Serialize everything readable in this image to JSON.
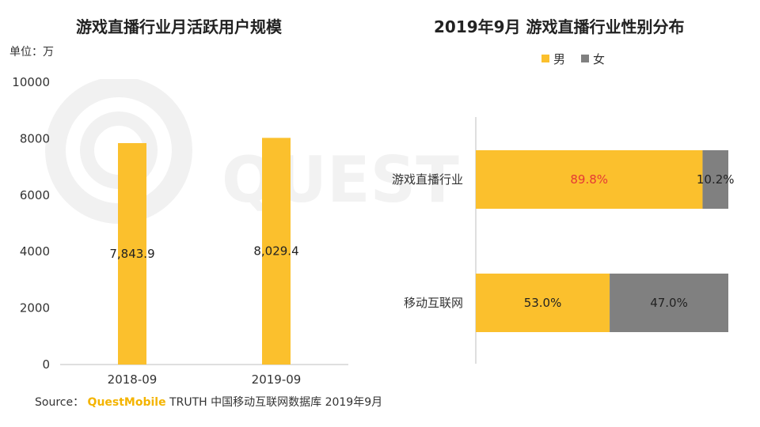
{
  "left_chart": {
    "title": "游戏直播行业月活跃用户规模",
    "unit_label": "单位：万"
  },
  "right_chart": {
    "title": "2019年9月 游戏直播行业性别分布"
  },
  "watermark_text": "QUEST",
  "source": {
    "prefix": "Source：",
    "brand": "QuestMobile",
    "rest": "TRUTH 中国移动互联网数据库 2019年9月"
  },
  "colors": {
    "yellow": "#FBC02D",
    "gray": "#808080",
    "highlight_label": "#E53935",
    "axis": "#BFBFBF"
  },
  "chart_data": [
    {
      "type": "bar",
      "title": "游戏直播行业月活跃用户规模",
      "ylabel": "单位：万",
      "categories": [
        "2018-09",
        "2019-09"
      ],
      "values": [
        7843.9,
        8029.4
      ],
      "value_labels": [
        "7,843.9",
        "8,029.4"
      ],
      "ylim": [
        0,
        10000
      ],
      "yticks": [
        0,
        2000,
        4000,
        6000,
        8000,
        10000
      ],
      "grid": false
    },
    {
      "type": "bar",
      "orientation": "horizontal",
      "stacked": "percent",
      "title": "2019年9月 游戏直播行业性别分布",
      "categories": [
        "游戏直播行业",
        "移动互联网"
      ],
      "series": [
        {
          "name": "男",
          "values": [
            89.8,
            53.0
          ],
          "labels": [
            "89.8%",
            "53.0%"
          ]
        },
        {
          "name": "女",
          "values": [
            10.2,
            47.0
          ],
          "labels": [
            "10.2%",
            "47.0%"
          ]
        }
      ],
      "legend_position": "top-center",
      "grid": false
    }
  ]
}
